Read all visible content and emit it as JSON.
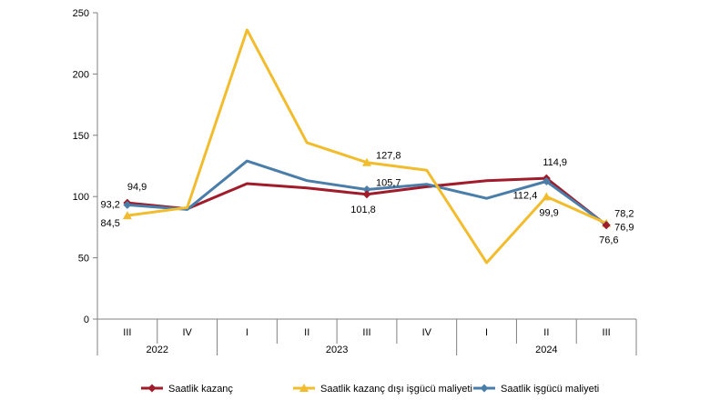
{
  "chart_data": {
    "type": "line",
    "title": "",
    "xlabel": "",
    "ylabel": "",
    "ylim": [
      0,
      250
    ],
    "yticks": [
      0,
      50,
      100,
      150,
      200,
      250
    ],
    "grid": false,
    "legend_position": "bottom",
    "categories": [
      "III",
      "IV",
      "I",
      "II",
      "III",
      "IV",
      "I",
      "II",
      "III"
    ],
    "year_groups": [
      {
        "label": "2022",
        "start": 0,
        "end": 1
      },
      {
        "label": "2023",
        "start": 2,
        "end": 5
      },
      {
        "label": "2024",
        "start": 6,
        "end": 8
      }
    ],
    "series": [
      {
        "name": "Saatlik kazanç",
        "color": "#a01c2a",
        "marker": "diamond",
        "values": [
          94.9,
          90,
          110.5,
          107,
          101.8,
          108,
          113,
          114.9,
          76.6
        ]
      },
      {
        "name": "Saatlik kazanç dışı işgücü maliyeti",
        "color": "#f2bc2f",
        "marker": "triangle",
        "values": [
          84.5,
          91,
          236,
          144,
          127.8,
          121.5,
          46,
          99.9,
          78.2
        ]
      },
      {
        "name": "Saatlik işgücü maliyeti",
        "color": "#4a7ea9",
        "marker": "diamond",
        "values": [
          93.2,
          89.5,
          129,
          113,
          105.7,
          110,
          98.5,
          112.4,
          76.9
        ]
      }
    ],
    "data_labels": [
      {
        "text": "94,9",
        "series": 0,
        "index": 0
      },
      {
        "text": "93,2",
        "series": 2,
        "index": 0
      },
      {
        "text": "84,5",
        "series": 1,
        "index": 0
      },
      {
        "text": "127,8",
        "series": 1,
        "index": 4
      },
      {
        "text": "105,7",
        "series": 2,
        "index": 4
      },
      {
        "text": "101,8",
        "series": 0,
        "index": 4
      },
      {
        "text": "114,9",
        "series": 0,
        "index": 7
      },
      {
        "text": "112,4",
        "series": 2,
        "index": 7
      },
      {
        "text": "99,9",
        "series": 1,
        "index": 7
      },
      {
        "text": "78,2",
        "series": 1,
        "index": 8
      },
      {
        "text": "76,9",
        "series": 2,
        "index": 8
      },
      {
        "text": "76,6",
        "series": 0,
        "index": 8
      }
    ]
  }
}
